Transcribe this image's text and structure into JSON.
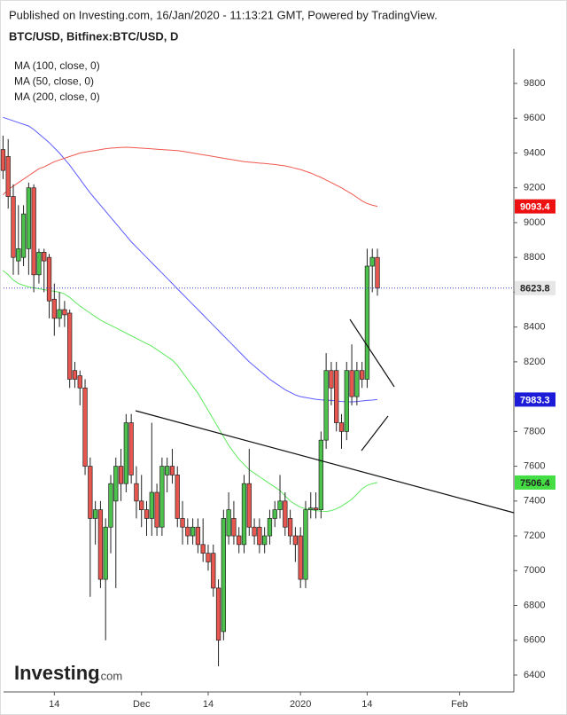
{
  "chart_data": {
    "type": "candlestick",
    "subtitle": "Published on Investing.com, 16/Jan/2020 - 11:13:21 GMT, Powered by TradingView.",
    "title": "BTC/USD, Bitfinex:BTC/USD, D",
    "logo": "Investing",
    "logo_suffix": ".com",
    "up_color": "#4cc24c",
    "down_color": "#e8574f",
    "x": [
      0,
      1,
      2,
      3,
      4,
      5,
      6,
      7,
      8,
      9,
      10,
      11,
      12,
      13,
      14,
      15,
      16,
      17,
      18,
      19,
      20,
      21,
      22,
      23,
      24,
      25,
      26,
      27,
      28,
      29,
      30,
      31,
      32,
      33,
      34,
      35,
      36,
      37,
      38,
      39,
      40,
      41,
      42,
      43,
      44,
      45,
      46,
      47,
      48,
      49,
      50,
      51,
      52,
      53,
      54,
      55,
      56,
      57,
      58,
      59,
      60,
      61,
      62,
      63,
      64,
      65,
      66,
      67,
      68,
      69,
      70,
      71,
      72,
      73
    ],
    "open": [
      9420,
      9380,
      9150,
      8780,
      8800,
      8850,
      9200,
      8700,
      8830,
      8800,
      8560,
      8450,
      8500,
      8480,
      8150,
      8120,
      8050,
      7600,
      7300,
      7350,
      6950,
      7250,
      7400,
      7600,
      7500,
      7850,
      7500,
      7400,
      7350,
      7300,
      7450,
      7250,
      7550,
      7600,
      7550,
      7300,
      7250,
      7200,
      7250,
      7150,
      7100,
      7100,
      6900,
      6650,
      7200,
      7300,
      7200,
      7150,
      7500,
      7250,
      7250,
      7150,
      7200,
      7300,
      7350,
      7400,
      7300,
      7200,
      7200,
      6950,
      7350,
      7360,
      7350,
      7750,
      8150,
      8150,
      7850,
      7800,
      8150,
      8000,
      8150,
      8100,
      8750,
      8800
    ],
    "high": [
      9500,
      9480,
      9220,
      9100,
      9100,
      9230,
      9220,
      8850,
      8850,
      8820,
      8650,
      8600,
      8550,
      8500,
      8200,
      8150,
      8100,
      7650,
      7400,
      7400,
      7300,
      7550,
      7650,
      7700,
      7900,
      7900,
      7600,
      7550,
      7400,
      7850,
      7500,
      7650,
      7650,
      7700,
      7600,
      7400,
      7300,
      7300,
      7300,
      7300,
      7150,
      7150,
      6950,
      7350,
      7450,
      7400,
      7250,
      7550,
      7700,
      7300,
      7300,
      7250,
      7350,
      7400,
      7550,
      7450,
      7350,
      7250,
      7250,
      7400,
      7450,
      7450,
      7800,
      8250,
      8200,
      8200,
      7900,
      8200,
      8300,
      8200,
      8200,
      8850,
      8850,
      8850
    ],
    "low": [
      9250,
      9080,
      8700,
      8700,
      8750,
      8700,
      8600,
      8650,
      8600,
      8450,
      8350,
      8400,
      8400,
      8050,
      8050,
      7950,
      7550,
      6850,
      7150,
      6900,
      6600,
      7100,
      6900,
      7400,
      7450,
      7500,
      7300,
      7250,
      7200,
      7200,
      7200,
      7200,
      7450,
      7500,
      7250,
      7150,
      7150,
      7150,
      7100,
      7050,
      7000,
      6850,
      6450,
      6600,
      7150,
      7150,
      7100,
      7100,
      7200,
      7150,
      7100,
      7100,
      7150,
      7250,
      7300,
      7200,
      7150,
      7050,
      6900,
      6900,
      7300,
      7300,
      7300,
      7700,
      7950,
      7800,
      7700,
      7750,
      7950,
      7950,
      8050,
      8050,
      8600,
      8580
    ],
    "close": [
      9300,
      9150,
      8800,
      8850,
      9050,
      9200,
      8700,
      8830,
      8780,
      8550,
      8450,
      8500,
      8470,
      8100,
      8100,
      8050,
      7600,
      7300,
      7350,
      6950,
      7250,
      7500,
      7600,
      7500,
      7850,
      7550,
      7400,
      7350,
      7300,
      7450,
      7250,
      7600,
      7600,
      7550,
      7300,
      7250,
      7200,
      7250,
      7150,
      7100,
      7050,
      6900,
      6600,
      7300,
      7350,
      7200,
      7150,
      7500,
      7250,
      7200,
      7150,
      7200,
      7300,
      7350,
      7400,
      7250,
      7200,
      7150,
      6950,
      7350,
      7360,
      7350,
      7750,
      8150,
      8050,
      7850,
      7800,
      8150,
      8000,
      8150,
      8100,
      8750,
      8800,
      8623.8
    ],
    "series": [
      {
        "name": "MA (100, close, 0)",
        "color": "#5b5bff",
        "values": [
          9605,
          9595,
          9585,
          9575,
          9565,
          9555,
          9535,
          9510,
          9485,
          9460,
          9430,
          9400,
          9365,
          9330,
          9290,
          9250,
          9210,
          9170,
          9135,
          9100,
          9065,
          9030,
          8995,
          8960,
          8925,
          8890,
          8860,
          8830,
          8800,
          8770,
          8740,
          8710,
          8680,
          8650,
          8620,
          8590,
          8560,
          8530,
          8500,
          8470,
          8440,
          8410,
          8380,
          8350,
          8320,
          8290,
          8260,
          8230,
          8200,
          8175,
          8150,
          8125,
          8100,
          8080,
          8060,
          8040,
          8025,
          8010,
          8000,
          7995,
          7990,
          7985,
          7982,
          7980,
          7978,
          7975,
          7972,
          7970,
          7970,
          7972,
          7975,
          7978,
          7980,
          7983.3
        ]
      },
      {
        "name": "MA (50, close, 0)",
        "color": "#5ee85e",
        "values": [
          8725,
          8700,
          8670,
          8650,
          8640,
          8630,
          8625,
          8620,
          8615,
          8610,
          8605,
          8600,
          8590,
          8570,
          8545,
          8520,
          8500,
          8480,
          8460,
          8440,
          8425,
          8410,
          8395,
          8380,
          8365,
          8350,
          8335,
          8320,
          8305,
          8290,
          8270,
          8250,
          8230,
          8210,
          8180,
          8140,
          8100,
          8060,
          8020,
          7970,
          7920,
          7870,
          7820,
          7770,
          7720,
          7680,
          7640,
          7610,
          7580,
          7560,
          7540,
          7520,
          7500,
          7480,
          7460,
          7430,
          7400,
          7380,
          7365,
          7355,
          7350,
          7345,
          7342,
          7340,
          7345,
          7355,
          7370,
          7390,
          7410,
          7440,
          7470,
          7490,
          7500,
          7506.4
        ]
      },
      {
        "name": "MA (200, close, 0)",
        "color": "#f0584f",
        "values": [
          9160,
          9190,
          9210,
          9230,
          9250,
          9270,
          9290,
          9310,
          9320,
          9335,
          9350,
          9360,
          9370,
          9380,
          9390,
          9400,
          9405,
          9410,
          9415,
          9420,
          9425,
          9428,
          9430,
          9432,
          9433,
          9432,
          9430,
          9428,
          9426,
          9424,
          9422,
          9420,
          9418,
          9416,
          9414,
          9410,
          9405,
          9400,
          9395,
          9390,
          9385,
          9380,
          9375,
          9370,
          9365,
          9360,
          9355,
          9350,
          9348,
          9345,
          9342,
          9340,
          9337,
          9334,
          9330,
          9326,
          9320,
          9312,
          9305,
          9295,
          9285,
          9272,
          9260,
          9245,
          9230,
          9215,
          9200,
          9182,
          9165,
          9145,
          9125,
          9110,
          9100,
          9093.4
        ]
      }
    ],
    "xlim": [
      0.1,
      99.6
    ],
    "xticks": [
      {
        "value": 10,
        "label": "14"
      },
      {
        "value": 27,
        "label": "Dec"
      },
      {
        "value": 40,
        "label": "14"
      },
      {
        "value": 58,
        "label": "2020"
      },
      {
        "value": 71,
        "label": "14"
      },
      {
        "value": 89,
        "label": "Feb"
      }
    ],
    "ylim": [
      6303,
      9999
    ],
    "yticks": [
      6400,
      6600,
      6800,
      7000,
      7200,
      7400,
      7600,
      7800,
      8000,
      8200,
      8400,
      8600,
      8800,
      9000,
      9200,
      9400,
      9600,
      9800
    ]
  }
}
